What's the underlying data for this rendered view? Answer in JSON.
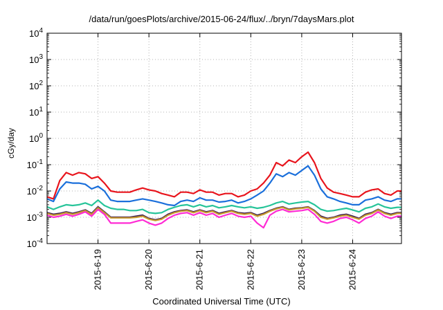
{
  "chart_data": {
    "type": "line",
    "title": "/data/run/goesPlots/archive/2015-06-24/flux/../bryn/7daysMars.plot",
    "xlabel": "Coordinated Universal Time (UTC)",
    "ylabel": "cGy/day",
    "y_scale": "log",
    "ylim": [
      0.0001,
      10000
    ],
    "y_ticks": [
      {
        "value": 0.0001,
        "base": "10",
        "exp": "-4"
      },
      {
        "value": 0.001,
        "base": "10",
        "exp": "-3"
      },
      {
        "value": 0.01,
        "base": "10",
        "exp": "-2"
      },
      {
        "value": 0.1,
        "base": "10",
        "exp": "-1"
      },
      {
        "value": 1,
        "base": "10",
        "exp": "0"
      },
      {
        "value": 10,
        "base": "10",
        "exp": "1"
      },
      {
        "value": 100,
        "base": "10",
        "exp": "2"
      },
      {
        "value": 1000,
        "base": "10",
        "exp": "3"
      },
      {
        "value": 10000,
        "base": "10",
        "exp": "4"
      }
    ],
    "xlim": [
      "2015-06-18 00:00",
      "2015-06-24 23:00"
    ],
    "x_ticks": [
      "2015-6-19",
      "2015-6-20",
      "2015-6-21",
      "2015-6-22",
      "2015-6-23",
      "2015-6-24"
    ],
    "x_tick_dates": [
      "2015-06-19",
      "2015-06-20",
      "2015-06-21",
      "2015-06-22",
      "2015-06-23",
      "2015-06-24"
    ],
    "grid": true,
    "x": [
      "2015-06-18 00:00",
      "2015-06-18 03:00",
      "2015-06-18 06:00",
      "2015-06-18 09:00",
      "2015-06-18 12:00",
      "2015-06-18 15:00",
      "2015-06-18 18:00",
      "2015-06-18 21:00",
      "2015-06-19 00:00",
      "2015-06-19 03:00",
      "2015-06-19 06:00",
      "2015-06-19 09:00",
      "2015-06-19 12:00",
      "2015-06-19 15:00",
      "2015-06-19 18:00",
      "2015-06-19 21:00",
      "2015-06-20 00:00",
      "2015-06-20 03:00",
      "2015-06-20 06:00",
      "2015-06-20 09:00",
      "2015-06-20 12:00",
      "2015-06-20 15:00",
      "2015-06-20 18:00",
      "2015-06-20 21:00",
      "2015-06-21 00:00",
      "2015-06-21 03:00",
      "2015-06-21 06:00",
      "2015-06-21 09:00",
      "2015-06-21 12:00",
      "2015-06-21 15:00",
      "2015-06-21 18:00",
      "2015-06-21 21:00",
      "2015-06-22 00:00",
      "2015-06-22 03:00",
      "2015-06-22 06:00",
      "2015-06-22 09:00",
      "2015-06-22 12:00",
      "2015-06-22 15:00",
      "2015-06-22 18:00",
      "2015-06-22 21:00",
      "2015-06-23 00:00",
      "2015-06-23 03:00",
      "2015-06-23 06:00",
      "2015-06-23 09:00",
      "2015-06-23 12:00",
      "2015-06-23 15:00",
      "2015-06-23 18:00",
      "2015-06-23 21:00",
      "2015-06-24 00:00",
      "2015-06-24 03:00",
      "2015-06-24 06:00",
      "2015-06-24 09:00",
      "2015-06-24 12:00",
      "2015-06-24 15:00",
      "2015-06-24 18:00",
      "2015-06-24 21:00",
      "2015-06-24 23:00"
    ],
    "series": [
      {
        "color": "#e8141c",
        "values": [
          0.006,
          0.005,
          0.025,
          0.05,
          0.04,
          0.05,
          0.045,
          0.03,
          0.035,
          0.02,
          0.01,
          0.009,
          0.009,
          0.009,
          0.011,
          0.013,
          0.011,
          0.01,
          0.008,
          0.007,
          0.006,
          0.009,
          0.009,
          0.008,
          0.011,
          0.009,
          0.009,
          0.007,
          0.008,
          0.008,
          0.006,
          0.007,
          0.01,
          0.012,
          0.02,
          0.04,
          0.12,
          0.09,
          0.15,
          0.12,
          0.2,
          0.3,
          0.12,
          0.03,
          0.013,
          0.009,
          0.008,
          0.007,
          0.006,
          0.006,
          0.009,
          0.011,
          0.012,
          0.008,
          0.007,
          0.01,
          0.01
        ]
      },
      {
        "color": "#1a6fdb",
        "values": [
          0.005,
          0.004,
          0.012,
          0.022,
          0.02,
          0.02,
          0.018,
          0.012,
          0.015,
          0.01,
          0.0045,
          0.004,
          0.004,
          0.004,
          0.0045,
          0.005,
          0.0045,
          0.004,
          0.0035,
          0.003,
          0.0028,
          0.004,
          0.0045,
          0.004,
          0.0055,
          0.0045,
          0.0045,
          0.0038,
          0.004,
          0.0045,
          0.0035,
          0.004,
          0.005,
          0.007,
          0.01,
          0.02,
          0.045,
          0.035,
          0.05,
          0.04,
          0.06,
          0.09,
          0.04,
          0.012,
          0.006,
          0.005,
          0.004,
          0.0035,
          0.003,
          0.003,
          0.0045,
          0.005,
          0.006,
          0.0045,
          0.004,
          0.005,
          0.005
        ]
      },
      {
        "color": "#26c499",
        "values": [
          0.0025,
          0.002,
          0.0025,
          0.003,
          0.0028,
          0.003,
          0.0035,
          0.0028,
          0.0045,
          0.0028,
          0.0022,
          0.002,
          0.002,
          0.0018,
          0.0018,
          0.002,
          0.0015,
          0.0014,
          0.0015,
          0.002,
          0.0024,
          0.0028,
          0.003,
          0.0025,
          0.003,
          0.0025,
          0.0028,
          0.0023,
          0.0025,
          0.0028,
          0.0025,
          0.0023,
          0.0025,
          0.0022,
          0.0024,
          0.0028,
          0.0035,
          0.004,
          0.0032,
          0.0035,
          0.0038,
          0.004,
          0.003,
          0.002,
          0.0017,
          0.0018,
          0.002,
          0.0022,
          0.0019,
          0.0016,
          0.0022,
          0.0025,
          0.0032,
          0.0025,
          0.0022,
          0.0024,
          0.0024
        ]
      },
      {
        "color": "#3a1e52",
        "values": [
          0.0015,
          0.0013,
          0.0014,
          0.0016,
          0.0014,
          0.0016,
          0.0019,
          0.0014,
          0.0025,
          0.0016,
          0.001,
          0.001,
          0.001,
          0.001,
          0.0011,
          0.0012,
          0.0009,
          0.0008,
          0.0009,
          0.0013,
          0.0016,
          0.0018,
          0.0019,
          0.0016,
          0.0019,
          0.0016,
          0.0018,
          0.0014,
          0.0016,
          0.0018,
          0.0015,
          0.0014,
          0.0015,
          0.0012,
          0.0014,
          0.0018,
          0.0022,
          0.0025,
          0.002,
          0.0022,
          0.0023,
          0.0025,
          0.0018,
          0.0011,
          0.0009,
          0.001,
          0.0012,
          0.0013,
          0.0011,
          0.0009,
          0.0013,
          0.0015,
          0.002,
          0.0015,
          0.0013,
          0.0015,
          0.0015
        ]
      },
      {
        "color": "#c89a2e",
        "values": [
          0.0014,
          0.0012,
          0.0013,
          0.0015,
          0.0013,
          0.0015,
          0.0018,
          0.0013,
          0.0023,
          0.0015,
          0.00095,
          0.00095,
          0.00095,
          0.00095,
          0.001,
          0.0011,
          0.00085,
          0.00075,
          0.00085,
          0.0012,
          0.0015,
          0.0017,
          0.0018,
          0.0015,
          0.0018,
          0.0015,
          0.0017,
          0.0013,
          0.0015,
          0.0017,
          0.0014,
          0.0013,
          0.0014,
          0.0011,
          0.0013,
          0.0017,
          0.0021,
          0.0024,
          0.0019,
          0.0021,
          0.0022,
          0.0024,
          0.0017,
          0.001,
          0.00085,
          0.00095,
          0.0011,
          0.0012,
          0.001,
          0.00085,
          0.0012,
          0.0014,
          0.0019,
          0.0014,
          0.0012,
          0.0014,
          0.0014
        ]
      },
      {
        "color": "#ff2ad4",
        "values": [
          0.0012,
          0.001,
          0.0011,
          0.0013,
          0.0011,
          0.0013,
          0.0016,
          0.0011,
          0.002,
          0.0013,
          0.0006,
          0.0006,
          0.0006,
          0.0006,
          0.0007,
          0.0008,
          0.0006,
          0.0005,
          0.0006,
          0.0009,
          0.0012,
          0.0014,
          0.0015,
          0.0012,
          0.0015,
          0.0012,
          0.0014,
          0.001,
          0.0012,
          0.0014,
          0.0011,
          0.001,
          0.0011,
          0.0006,
          0.0004,
          0.0012,
          0.0017,
          0.002,
          0.0016,
          0.0017,
          0.0018,
          0.002,
          0.0013,
          0.0007,
          0.0006,
          0.0007,
          0.0009,
          0.001,
          0.0008,
          0.0006,
          0.0009,
          0.0011,
          0.0016,
          0.0011,
          0.0009,
          0.0011,
          0.0011
        ]
      }
    ]
  }
}
